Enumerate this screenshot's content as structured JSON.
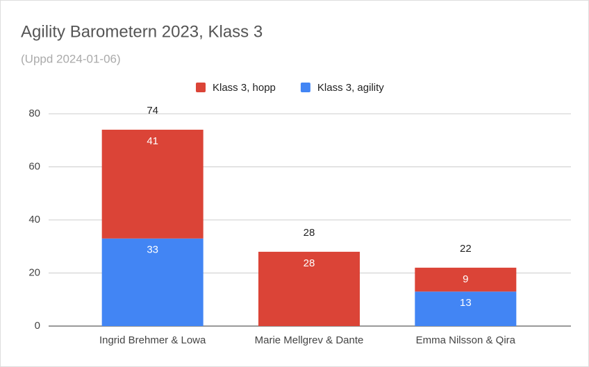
{
  "chart_data": {
    "type": "stacked_bar",
    "title": "Agility Barometern 2023, Klass 3",
    "subtitle": "(Uppd 2024-01-06)",
    "categories": [
      "Ingrid Brehmer & Lowa",
      "Marie Mellgrev & Dante",
      "Emma Nilsson & Qira"
    ],
    "series": [
      {
        "name": "Klass 3, hopp",
        "color": "#db4437",
        "values": [
          41,
          28,
          9
        ]
      },
      {
        "name": "Klass 3, agility",
        "color": "#4285f4",
        "values": [
          33,
          null,
          13
        ]
      }
    ],
    "totals": [
      74,
      28,
      22
    ],
    "ylim": [
      0,
      80
    ],
    "yticks": [
      0,
      20,
      40,
      60,
      80
    ],
    "grid": true,
    "legend": "top"
  }
}
